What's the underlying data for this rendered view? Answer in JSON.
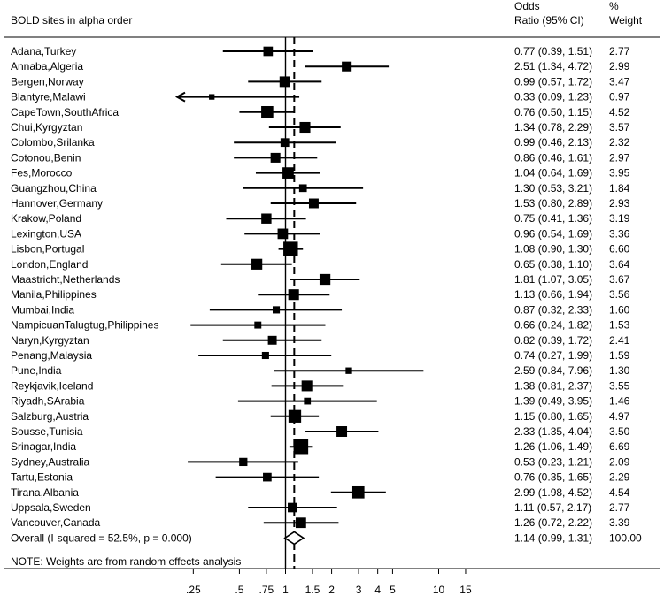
{
  "chart_data": {
    "type": "forest",
    "header": {
      "left": "BOLD sites in alpha order",
      "or_line1": "Odds",
      "or_line2": "Ratio (95% CI)",
      "wt_line1": "%",
      "wt_line2": "Weight"
    },
    "x_scale": "log",
    "xlim": [
      0.18,
      16
    ],
    "null_value": 1,
    "pooled_line": 1.14,
    "ticks": [
      {
        "value": 0.25,
        "label": ".25"
      },
      {
        "value": 0.5,
        "label": ".5"
      },
      {
        "value": 0.75,
        "label": ".75"
      },
      {
        "value": 1,
        "label": "1"
      },
      {
        "value": 1.5,
        "label": "1.5"
      },
      {
        "value": 2,
        "label": "2"
      },
      {
        "value": 3,
        "label": "3"
      },
      {
        "value": 4,
        "label": "4"
      },
      {
        "value": 5,
        "label": "5"
      },
      {
        "value": 10,
        "label": "10"
      },
      {
        "value": 15,
        "label": "15"
      }
    ],
    "studies": [
      {
        "site": "Adana,Turkey",
        "or": 0.77,
        "lo": 0.39,
        "hi": 1.51,
        "text": "0.77 (0.39, 1.51)",
        "weight": 2.77,
        "weight_text": "2.77"
      },
      {
        "site": "Annaba,Algeria",
        "or": 2.51,
        "lo": 1.34,
        "hi": 4.72,
        "text": "2.51 (1.34, 4.72)",
        "weight": 2.99,
        "weight_text": "2.99"
      },
      {
        "site": "Bergen,Norway",
        "or": 0.99,
        "lo": 0.57,
        "hi": 1.72,
        "text": "0.99 (0.57, 1.72)",
        "weight": 3.47,
        "weight_text": "3.47"
      },
      {
        "site": "Blantyre,Malawi",
        "or": 0.33,
        "lo": 0.09,
        "hi": 1.23,
        "text": "0.33 (0.09, 1.23)",
        "weight": 0.97,
        "weight_text": "0.97"
      },
      {
        "site": "CapeTown,SouthAfrica",
        "or": 0.76,
        "lo": 0.5,
        "hi": 1.15,
        "text": "0.76 (0.50, 1.15)",
        "weight": 4.52,
        "weight_text": "4.52"
      },
      {
        "site": "Chui,Kyrgyztan",
        "or": 1.34,
        "lo": 0.78,
        "hi": 2.29,
        "text": "1.34 (0.78, 2.29)",
        "weight": 3.57,
        "weight_text": "3.57"
      },
      {
        "site": "Colombo,Srilanka",
        "or": 0.99,
        "lo": 0.46,
        "hi": 2.13,
        "text": "0.99 (0.46, 2.13)",
        "weight": 2.32,
        "weight_text": "2.32"
      },
      {
        "site": "Cotonou,Benin",
        "or": 0.86,
        "lo": 0.46,
        "hi": 1.61,
        "text": "0.86 (0.46, 1.61)",
        "weight": 2.97,
        "weight_text": "2.97"
      },
      {
        "site": "Fes,Morocco",
        "or": 1.04,
        "lo": 0.64,
        "hi": 1.69,
        "text": "1.04 (0.64, 1.69)",
        "weight": 3.95,
        "weight_text": "3.95"
      },
      {
        "site": "Guangzhou,China",
        "or": 1.3,
        "lo": 0.53,
        "hi": 3.21,
        "text": "1.30 (0.53, 3.21)",
        "weight": 1.84,
        "weight_text": "1.84"
      },
      {
        "site": "Hannover,Germany",
        "or": 1.53,
        "lo": 0.8,
        "hi": 2.89,
        "text": "1.53 (0.80, 2.89)",
        "weight": 2.93,
        "weight_text": "2.93"
      },
      {
        "site": "Krakow,Poland",
        "or": 0.75,
        "lo": 0.41,
        "hi": 1.36,
        "text": "0.75 (0.41, 1.36)",
        "weight": 3.19,
        "weight_text": "3.19"
      },
      {
        "site": "Lexington,USA",
        "or": 0.96,
        "lo": 0.54,
        "hi": 1.69,
        "text": "0.96 (0.54, 1.69)",
        "weight": 3.36,
        "weight_text": "3.36"
      },
      {
        "site": "Lisbon,Portugal",
        "or": 1.08,
        "lo": 0.9,
        "hi": 1.3,
        "text": "1.08 (0.90, 1.30)",
        "weight": 6.6,
        "weight_text": "6.60"
      },
      {
        "site": "London,England",
        "or": 0.65,
        "lo": 0.38,
        "hi": 1.1,
        "text": "0.65 (0.38, 1.10)",
        "weight": 3.64,
        "weight_text": "3.64"
      },
      {
        "site": "Maastricht,Netherlands",
        "or": 1.81,
        "lo": 1.07,
        "hi": 3.05,
        "text": "1.81 (1.07, 3.05)",
        "weight": 3.67,
        "weight_text": "3.67"
      },
      {
        "site": "Manila,Philippines",
        "or": 1.13,
        "lo": 0.66,
        "hi": 1.94,
        "text": "1.13 (0.66, 1.94)",
        "weight": 3.56,
        "weight_text": "3.56"
      },
      {
        "site": "Mumbai,India",
        "or": 0.87,
        "lo": 0.32,
        "hi": 2.33,
        "text": "0.87 (0.32, 2.33)",
        "weight": 1.6,
        "weight_text": "1.60"
      },
      {
        "site": "NampicuanTalugtug,Philippines",
        "or": 0.66,
        "lo": 0.24,
        "hi": 1.82,
        "text": "0.66 (0.24, 1.82)",
        "weight": 1.53,
        "weight_text": "1.53"
      },
      {
        "site": "Naryn,Kyrgyztan",
        "or": 0.82,
        "lo": 0.39,
        "hi": 1.72,
        "text": "0.82 (0.39, 1.72)",
        "weight": 2.41,
        "weight_text": "2.41"
      },
      {
        "site": "Penang,Malaysia",
        "or": 0.74,
        "lo": 0.27,
        "hi": 1.99,
        "text": "0.74 (0.27, 1.99)",
        "weight": 1.59,
        "weight_text": "1.59"
      },
      {
        "site": "Pune,India",
        "or": 2.59,
        "lo": 0.84,
        "hi": 7.96,
        "text": "2.59 (0.84, 7.96)",
        "weight": 1.3,
        "weight_text": "1.30"
      },
      {
        "site": "Reykjavik,Iceland",
        "or": 1.38,
        "lo": 0.81,
        "hi": 2.37,
        "text": "1.38 (0.81, 2.37)",
        "weight": 3.55,
        "weight_text": "3.55"
      },
      {
        "site": "Riyadh,SArabia",
        "or": 1.39,
        "lo": 0.49,
        "hi": 3.95,
        "text": "1.39 (0.49, 3.95)",
        "weight": 1.46,
        "weight_text": "1.46"
      },
      {
        "site": "Salzburg,Austria",
        "or": 1.15,
        "lo": 0.8,
        "hi": 1.65,
        "text": "1.15 (0.80, 1.65)",
        "weight": 4.97,
        "weight_text": "4.97"
      },
      {
        "site": "Sousse,Tunisia",
        "or": 2.33,
        "lo": 1.35,
        "hi": 4.04,
        "text": "2.33 (1.35, 4.04)",
        "weight": 3.5,
        "weight_text": "3.50"
      },
      {
        "site": "Srinagar,India",
        "or": 1.26,
        "lo": 1.06,
        "hi": 1.49,
        "text": "1.26 (1.06, 1.49)",
        "weight": 6.69,
        "weight_text": "6.69"
      },
      {
        "site": "Sydney,Australia",
        "or": 0.53,
        "lo": 0.23,
        "hi": 1.21,
        "text": "0.53 (0.23, 1.21)",
        "weight": 2.09,
        "weight_text": "2.09"
      },
      {
        "site": "Tartu,Estonia",
        "or": 0.76,
        "lo": 0.35,
        "hi": 1.65,
        "text": "0.76 (0.35, 1.65)",
        "weight": 2.29,
        "weight_text": "2.29"
      },
      {
        "site": "Tirana,Albania",
        "or": 2.99,
        "lo": 1.98,
        "hi": 4.52,
        "text": "2.99 (1.98, 4.52)",
        "weight": 4.54,
        "weight_text": "4.54"
      },
      {
        "site": "Uppsala,Sweden",
        "or": 1.11,
        "lo": 0.57,
        "hi": 2.17,
        "text": "1.11 (0.57, 2.17)",
        "weight": 2.77,
        "weight_text": "2.77"
      },
      {
        "site": "Vancouver,Canada",
        "or": 1.26,
        "lo": 0.72,
        "hi": 2.22,
        "text": "1.26 (0.72, 2.22)",
        "weight": 3.39,
        "weight_text": "3.39"
      }
    ],
    "overall": {
      "label": "Overall  (I-squared = 52.5%, p = 0.000)",
      "or": 1.14,
      "lo": 0.99,
      "hi": 1.31,
      "text": "1.14 (0.99, 1.31)",
      "weight_text": "100.00"
    },
    "note": "NOTE: Weights are from random effects analysis"
  }
}
